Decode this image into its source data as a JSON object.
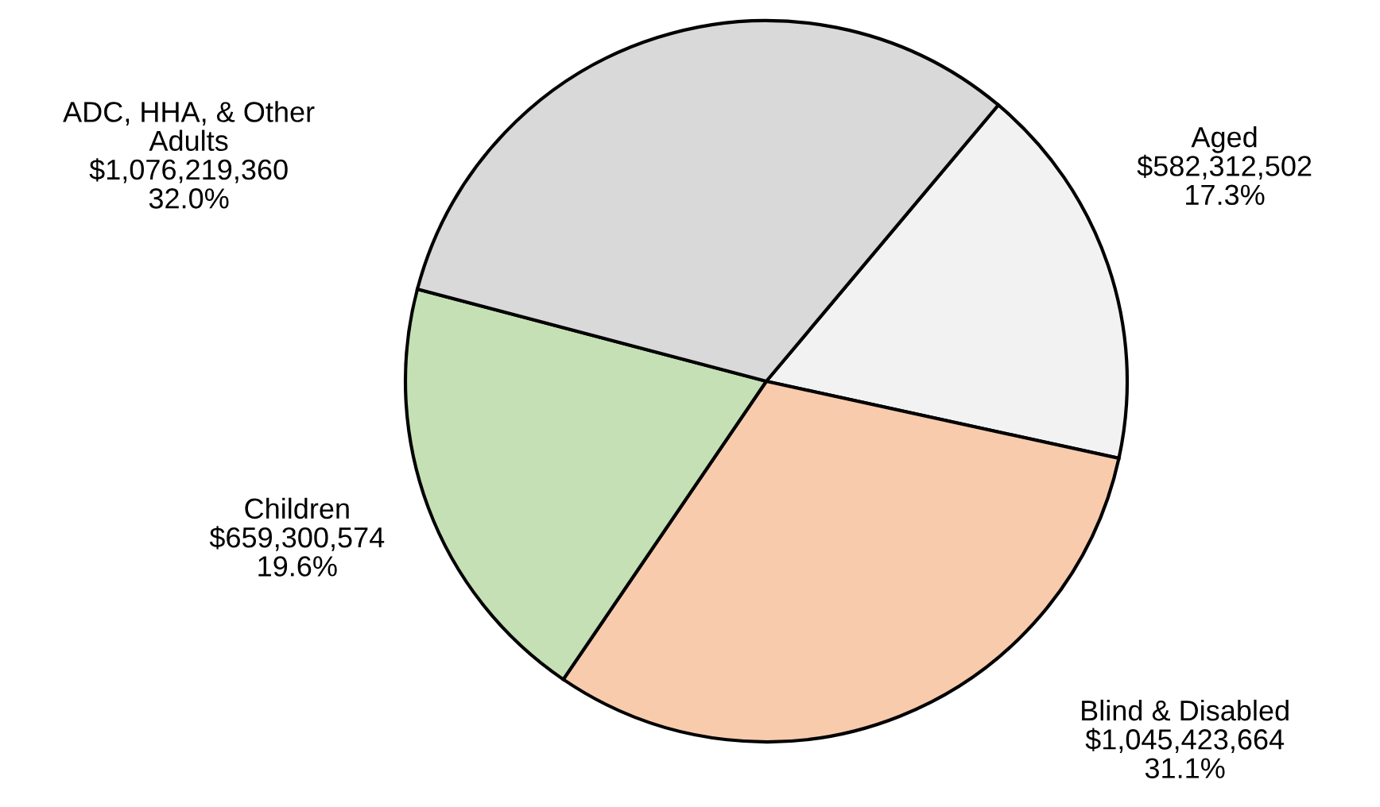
{
  "chart_data": {
    "type": "pie",
    "categories": [
      "Aged",
      "Blind & Disabled",
      "Children",
      "ADC, HHA, & Other Adults"
    ],
    "values": [
      582312502,
      1045423664,
      659300574,
      1076219360
    ],
    "value_labels": [
      "$582,312,502\n17.3%",
      "$1,045,423,664\n31.1%",
      "$659,300,574\n19.6%",
      "$1,076,219,360\n32.0%"
    ],
    "colors": [
      "#f2f2f2",
      "#f8cbad",
      "#c5e0b4",
      "#d9d9d9"
    ]
  }
}
